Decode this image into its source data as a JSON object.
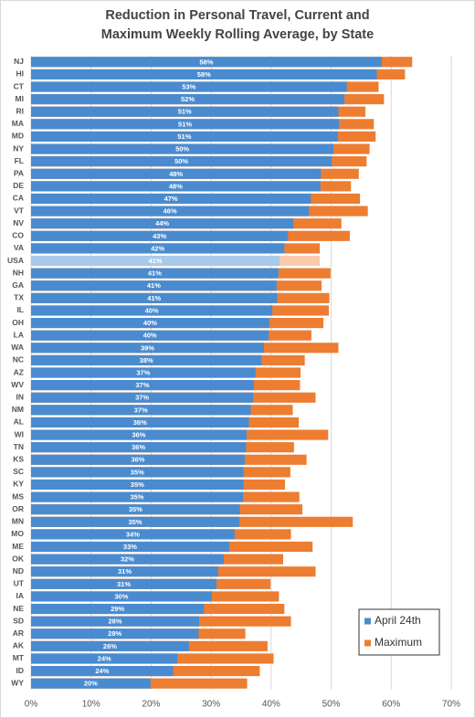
{
  "chart_data": {
    "type": "bar",
    "orientation": "horizontal",
    "layout": "overlap",
    "title": "Reduction in Personal Travel, Current and Maximum Weekly Rolling Average, by State",
    "categories": [
      "NJ",
      "HI",
      "CT",
      "MI",
      "RI",
      "MA",
      "MD",
      "NY",
      "FL",
      "PA",
      "DE",
      "CA",
      "VT",
      "NV",
      "CO",
      "VA",
      "USA",
      "NH",
      "GA",
      "TX",
      "IL",
      "OH",
      "LA",
      "WA",
      "NC",
      "AZ",
      "WV",
      "IN",
      "NM",
      "AL",
      "WI",
      "TN",
      "KS",
      "SC",
      "KY",
      "MS",
      "OR",
      "MN",
      "MO",
      "ME",
      "OK",
      "ND",
      "UT",
      "IA",
      "NE",
      "SD",
      "AR",
      "AK",
      "MT",
      "ID",
      "WY"
    ],
    "highlight": "USA",
    "series": [
      {
        "name": "Maximum",
        "color": "#ed7d31",
        "highlight_color": "#f8cbad",
        "values": [
          63.5,
          62.3,
          57.9,
          58.8,
          55.7,
          57.1,
          57.4,
          56.4,
          55.9,
          54.6,
          53.3,
          54.8,
          56.1,
          51.7,
          53.1,
          48.1,
          48.1,
          49.9,
          48.4,
          49.7,
          49.6,
          48.7,
          46.7,
          51.2,
          45.6,
          44.9,
          44.8,
          47.4,
          43.6,
          44.6,
          49.5,
          43.8,
          45.9,
          43.2,
          42.3,
          44.7,
          45.2,
          53.6,
          43.3,
          46.9,
          42.0,
          47.4,
          39.9,
          41.3,
          42.2,
          43.3,
          35.7,
          39.4,
          40.4,
          38.1,
          36.0
        ]
      },
      {
        "name": "April 24th",
        "color": "#4a8bd0",
        "highlight_color": "#a9c9ea",
        "values": [
          58.4,
          57.6,
          52.6,
          52.2,
          51.2,
          51.3,
          51.1,
          50.4,
          50.1,
          48.3,
          48.2,
          46.6,
          46.3,
          43.7,
          42.8,
          42.2,
          41.4,
          41.2,
          40.9,
          41.0,
          40.2,
          39.7,
          39.6,
          38.8,
          38.4,
          37.4,
          37.1,
          37.0,
          36.6,
          36.3,
          35.9,
          35.8,
          35.6,
          35.4,
          35.4,
          35.3,
          34.8,
          34.7,
          33.9,
          33.0,
          32.1,
          31.2,
          30.9,
          30.1,
          28.8,
          28.0,
          27.9,
          26.3,
          24.4,
          23.7,
          19.9
        ],
        "value_labels": [
          "58%",
          "58%",
          "53%",
          "52%",
          "51%",
          "51%",
          "51%",
          "50%",
          "50%",
          "48%",
          "48%",
          "47%",
          "46%",
          "44%",
          "43%",
          "42%",
          "41%",
          "41%",
          "41%",
          "41%",
          "40%",
          "40%",
          "40%",
          "39%",
          "38%",
          "37%",
          "37%",
          "37%",
          "37%",
          "36%",
          "36%",
          "36%",
          "36%",
          "35%",
          "35%",
          "35%",
          "35%",
          "35%",
          "34%",
          "33%",
          "32%",
          "31%",
          "31%",
          "30%",
          "29%",
          "28%",
          "28%",
          "26%",
          "24%",
          "24%",
          "20%"
        ]
      }
    ],
    "xlim": [
      0,
      70
    ],
    "xticks": [
      {
        "value": 0,
        "label": "0%"
      },
      {
        "value": 10,
        "label": "10%"
      },
      {
        "value": 20,
        "label": "20%"
      },
      {
        "value": 30,
        "label": "30%"
      },
      {
        "value": 40,
        "label": "40%"
      },
      {
        "value": 50,
        "label": "50%"
      },
      {
        "value": 60,
        "label": "60%"
      },
      {
        "value": 70,
        "label": "70%"
      }
    ],
    "grid": true,
    "legend": "bottom-right"
  }
}
